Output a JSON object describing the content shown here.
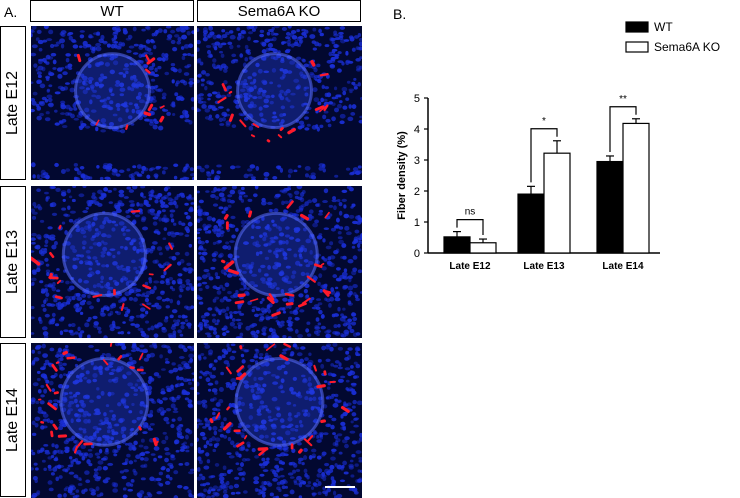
{
  "panel_a": {
    "letter": "A.",
    "columns": [
      "WT",
      "Sema6A KO"
    ],
    "rows": [
      "Late E12",
      "Late E13",
      "Late E14"
    ]
  },
  "panel_b": {
    "letter": "B."
  },
  "colors": {
    "nuclei": "#1a2fd8",
    "fibers": "#ff1a2a",
    "background": "#020830",
    "wt_bar": "#000000",
    "ko_bar": "#ffffff"
  },
  "chart_data": {
    "type": "bar",
    "categories": [
      "Late E12",
      "Late E13",
      "Late E14"
    ],
    "series": [
      {
        "name": "WT",
        "values": [
          0.52,
          1.9,
          2.95
        ],
        "errors": [
          0.17,
          0.25,
          0.18
        ]
      },
      {
        "name": "Sema6A KO",
        "values": [
          0.33,
          3.22,
          4.18
        ],
        "errors": [
          0.12,
          0.4,
          0.15
        ]
      }
    ],
    "xlabel": "",
    "ylabel": "Fiber density (%)",
    "ylim": [
      0,
      5
    ],
    "yticks": [
      "0",
      "1",
      "2",
      "3",
      "4",
      "5"
    ],
    "significance": [
      "ns",
      "*",
      "**"
    ],
    "legend_position": "top-right",
    "grid": false
  }
}
